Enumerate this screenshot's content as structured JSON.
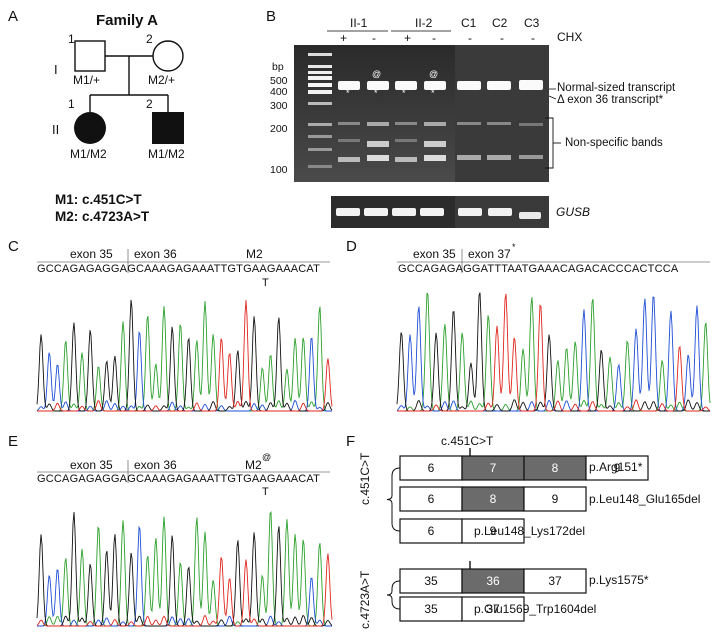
{
  "panels": {
    "a": "A",
    "b": "B",
    "c": "C",
    "d": "D",
    "e": "E",
    "f": "F"
  },
  "pedigree": {
    "title": "Family A",
    "gen_I": "I",
    "gen_II": "II",
    "I1_num": "1",
    "I2_num": "2",
    "II1_num": "1",
    "II2_num": "2",
    "I1_geno": "M1/+",
    "I2_geno": "M2/+",
    "II1_geno": "M1/M2",
    "II2_geno": "M1/M2",
    "m1": "M1: c.451C>T",
    "m2": "M2: c.4723A>T"
  },
  "gel": {
    "group1": "II-1",
    "group2": "II-2",
    "c1": "C1",
    "c2": "C2",
    "c3": "C3",
    "chx": "CHX",
    "lanes_chx": [
      "+",
      "-",
      "+",
      "-",
      "-",
      "-",
      "-"
    ],
    "bp": "bp",
    "markers": [
      "500",
      "400",
      "300",
      "200",
      "100"
    ],
    "at_symbol": "@",
    "normal": "Normal-sized transcript",
    "delta": "Δ exon 36 transcript*",
    "nonspecific": "Non-specific bands",
    "gusb": "GUSB"
  },
  "seqC": {
    "exon_a": "exon 35",
    "exon_b": "exon 36",
    "mut": "M2",
    "seq": "GCCAGAGAGGAGCAAAGAGAAATTGTGAAGAAACAT",
    "alt": "T"
  },
  "seqD": {
    "exon_a": "exon 35",
    "exon_b": "exon 37",
    "star": "*",
    "seq": "GCCAGAGAGGATTTAATGAAACAGACACCCACTCCA"
  },
  "seqE": {
    "exon_a": "exon 35",
    "exon_b": "exon 36",
    "mut": "M2",
    "at": "@",
    "seq": "GCCAGAGAGGAGCAAAGAGAAATTGTGAAGAAACAT",
    "alt": "T"
  },
  "panelF": {
    "side1": "c.451C>T",
    "side2": "c.4723A>T",
    "top1": "c.451C>T",
    "top2": "c.4723A>T",
    "rows": [
      {
        "exons": [
          "6",
          "7",
          "8",
          "9"
        ],
        "label": "p.Arg151*"
      },
      {
        "exons": [
          "6",
          "8",
          "9"
        ],
        "label": "p.Leu148_Glu165del"
      },
      {
        "exons": [
          "6",
          "9"
        ],
        "label": "p.Leu148_Lys172del"
      },
      {
        "exons": [
          "35",
          "36",
          "37"
        ],
        "label": "p.Lys1575*"
      },
      {
        "exons": [
          "35",
          "37"
        ],
        "label": "p.Glu1569_Trp1604del"
      }
    ]
  },
  "colors": {
    "A": "#2ca02c",
    "C": "#1f4fd6",
    "G": "#111111",
    "T": "#e0261d",
    "exon_fill": "#6b6b6b"
  }
}
